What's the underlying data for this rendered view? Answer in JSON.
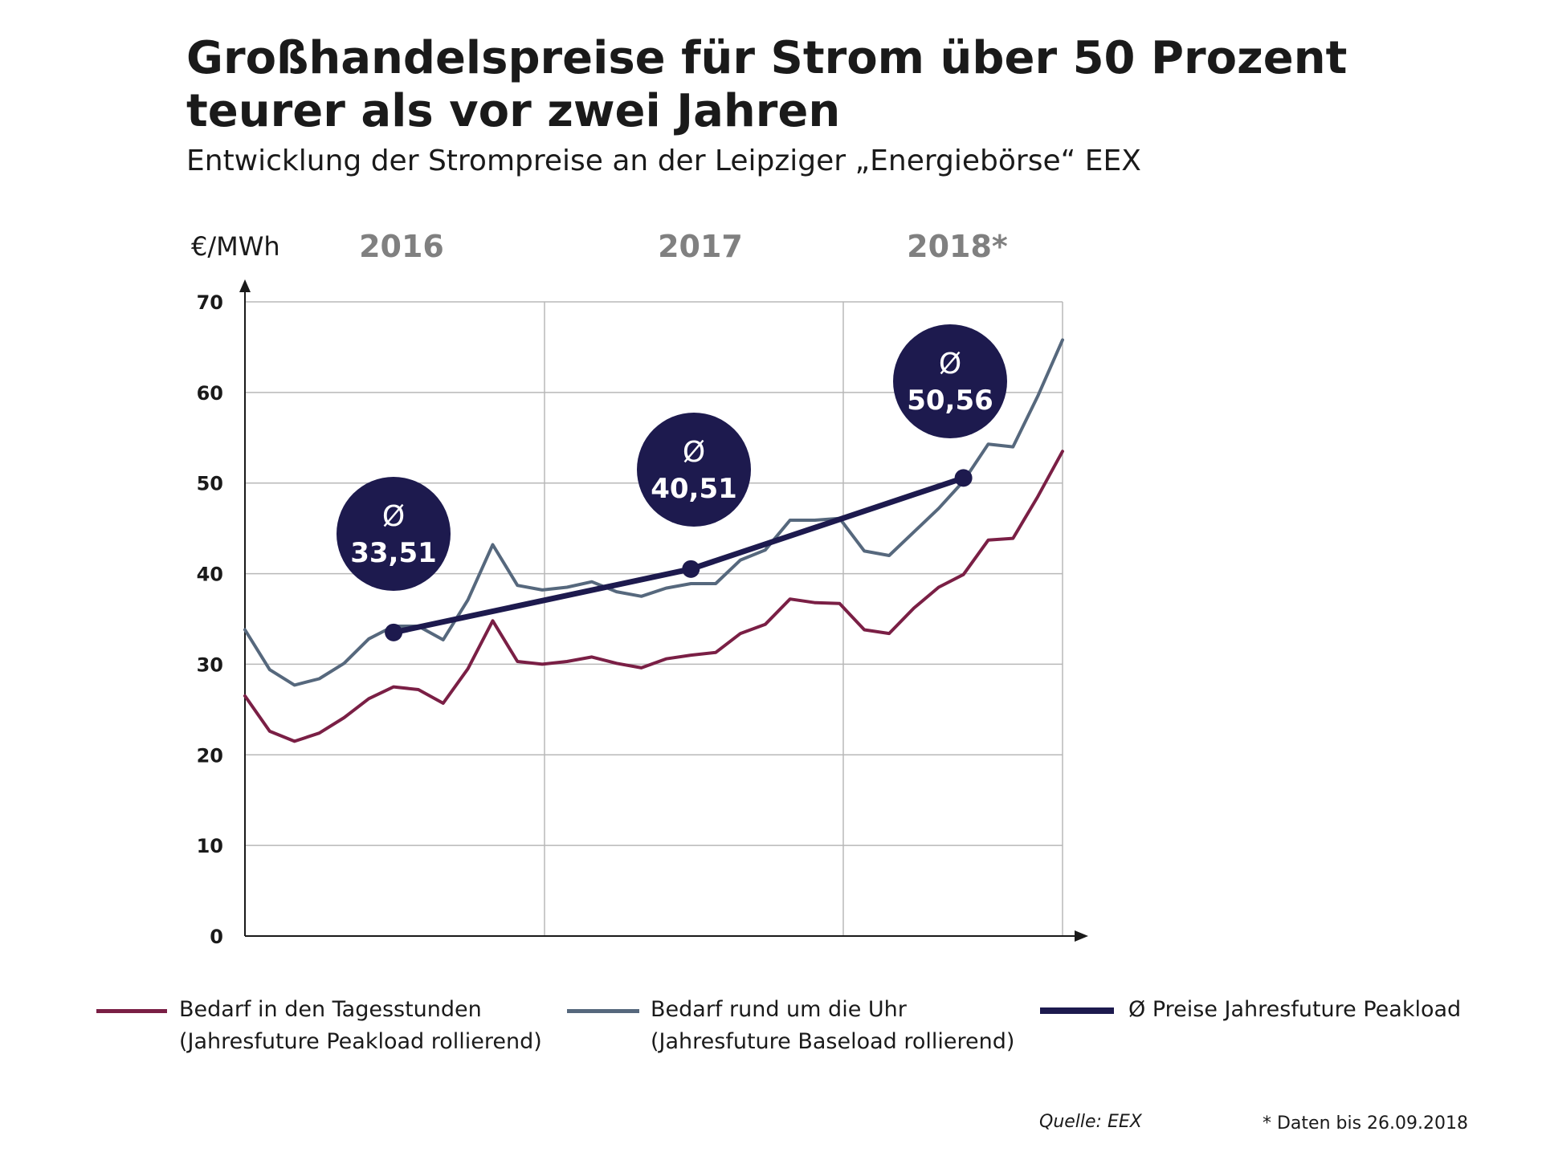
{
  "title_line1": "Großhandelspreise für Strom über 50 Prozent",
  "title_line2": "teurer als vor zwei Jahren",
  "subtitle": "Entwicklung der Strompreise an der Leipziger „Energiebörse“ EEX",
  "colors": {
    "peak": "#7a1f45",
    "base": "#56687d",
    "avg": "#1d1a4e",
    "grid": "#b8b8b8",
    "year_label": "#808080"
  },
  "chart_data": {
    "type": "line",
    "ylabel": "€/MWh",
    "ylim": [
      0,
      70
    ],
    "yticks": [
      "0",
      "10",
      "20",
      "30",
      "40",
      "50",
      "60",
      "70"
    ],
    "year_labels": [
      "2016",
      "2017",
      "2018*"
    ],
    "grid": true,
    "x": [
      1,
      2,
      3,
      4,
      5,
      6,
      7,
      8,
      9,
      10,
      11,
      12,
      13,
      14,
      15,
      16,
      17,
      18,
      19,
      20,
      21,
      22,
      23,
      24,
      25,
      26,
      27,
      28,
      29,
      30,
      31,
      32,
      33,
      34
    ],
    "series": [
      {
        "key": "peak",
        "values": [
          26.5,
          22.6,
          21.5,
          22.4,
          24.1,
          26.2,
          27.5,
          27.2,
          25.7,
          29.5,
          34.8,
          30.3,
          30.0,
          30.3,
          30.8,
          30.1,
          29.6,
          30.6,
          31.0,
          31.3,
          33.4,
          34.4,
          37.2,
          36.8,
          36.7,
          33.8,
          33.4,
          36.2,
          38.5,
          39.9,
          43.7,
          43.9,
          48.5,
          53.5
        ]
      },
      {
        "key": "base",
        "values": [
          33.8,
          29.4,
          27.7,
          28.4,
          30.1,
          32.8,
          34.2,
          34.2,
          32.7,
          37.1,
          43.2,
          38.7,
          38.2,
          38.5,
          39.1,
          38.0,
          37.5,
          38.4,
          38.9,
          38.9,
          41.5,
          42.6,
          45.9,
          45.9,
          46.1,
          42.5,
          42.0,
          44.6,
          47.2,
          50.2,
          54.3,
          54.0,
          59.6,
          65.8
        ]
      },
      {
        "key": "avg",
        "x": [
          7,
          19,
          30
        ],
        "values": [
          33.51,
          40.51,
          50.56
        ]
      }
    ],
    "annotations": [
      {
        "symbol": "Ø",
        "value": "33,51"
      },
      {
        "symbol": "Ø",
        "value": "40,51"
      },
      {
        "symbol": "Ø",
        "value": "50,56"
      }
    ]
  },
  "legend": [
    {
      "key": "peak",
      "line1": "Bedarf in den Tagesstunden",
      "line2": "(Jahresfuture Peakload rollierend)"
    },
    {
      "key": "base",
      "line1": "Bedarf rund um die Uhr",
      "line2": "(Jahresfuture Baseload rollierend)"
    },
    {
      "key": "avg",
      "line1": "Ø Preise Jahresfuture Peakload",
      "line2": ""
    }
  ],
  "source": "Quelle: EEX",
  "footnote": "* Daten bis 26.09.2018"
}
